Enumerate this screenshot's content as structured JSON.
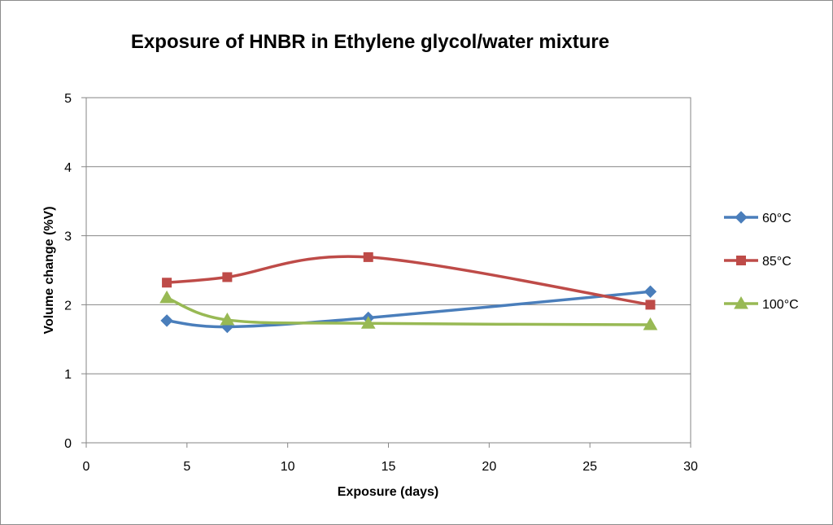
{
  "chart_data": {
    "type": "line",
    "title": "Exposure of HNBR in Ethylene glycol/water mixture",
    "xlabel": "Exposure (days)",
    "ylabel": "Volume change (%V)",
    "xlim": [
      0,
      30
    ],
    "ylim": [
      0,
      5
    ],
    "x_ticks": [
      "0",
      "5",
      "10",
      "15",
      "20",
      "25",
      "30"
    ],
    "y_ticks": [
      "0",
      "1",
      "2",
      "3",
      "4",
      "5"
    ],
    "grid": "horizontal",
    "legend_position": "right",
    "smoothed": true,
    "series": [
      {
        "name": "60°C",
        "color": "#4a7ebb",
        "marker": "diamond",
        "x": [
          4,
          7,
          14,
          28
        ],
        "y": [
          1.77,
          1.68,
          1.81,
          2.19
        ]
      },
      {
        "name": "85°C",
        "color": "#be4b48",
        "marker": "square",
        "x": [
          4,
          7,
          14,
          28
        ],
        "y": [
          2.32,
          2.4,
          2.69,
          2.0
        ]
      },
      {
        "name": "100°C",
        "color": "#98b954",
        "marker": "triangle",
        "x": [
          4,
          7,
          14,
          28
        ],
        "y": [
          2.1,
          1.78,
          1.73,
          1.71
        ]
      }
    ]
  }
}
